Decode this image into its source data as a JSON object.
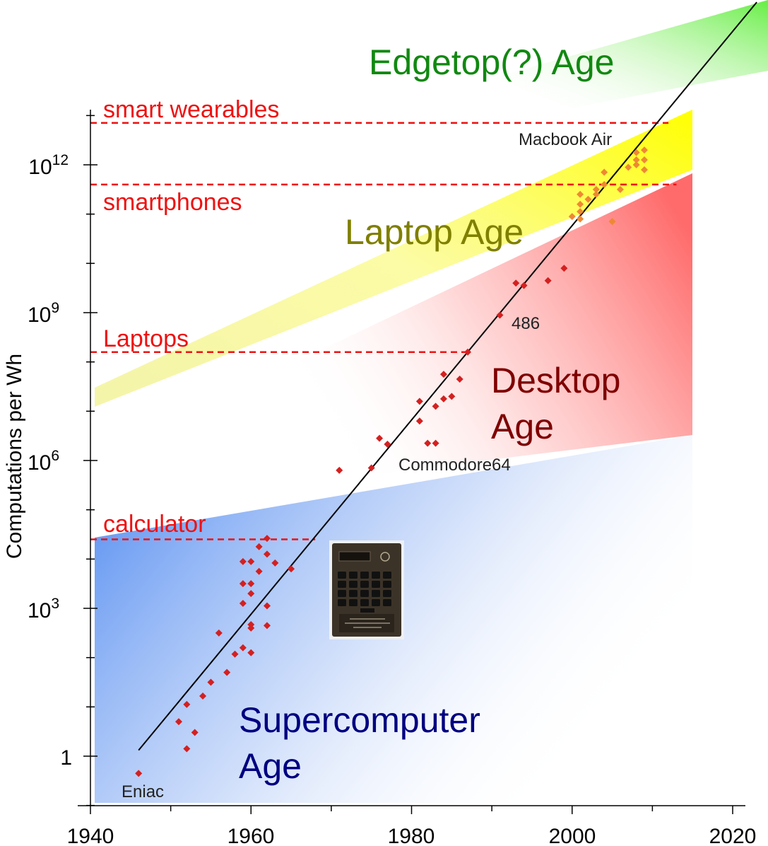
{
  "chart_data": {
    "type": "scatter",
    "title": "",
    "xlabel": "",
    "ylabel": "Computations per Wh",
    "x_log": false,
    "y_log": true,
    "xlim": [
      1940,
      2024
    ],
    "ylim_log10": [
      -1,
      14.4
    ],
    "x_ticks": [
      {
        "value": 1940,
        "label": "1940"
      },
      {
        "value": 1960,
        "label": "1960"
      },
      {
        "value": 1980,
        "label": "1980"
      },
      {
        "value": 2000,
        "label": "2000"
      },
      {
        "value": 2020,
        "label": "2020"
      }
    ],
    "y_ticks": [
      {
        "log10": 0,
        "label": "1"
      },
      {
        "log10": 3,
        "base": "10",
        "exp": "3"
      },
      {
        "log10": 6,
        "base": "10",
        "exp": "6"
      },
      {
        "log10": 9,
        "base": "10",
        "exp": "9"
      },
      {
        "log10": 12,
        "base": "10",
        "exp": "12"
      }
    ],
    "grid": false,
    "trend_line": {
      "x": [
        1946,
        2023
      ],
      "log10_y": [
        0.12,
        15.3
      ],
      "color": "#000000"
    },
    "thresholds": [
      {
        "label": "smart wearables",
        "log10_value": 12.85,
        "x_end": 2012,
        "label_pos": "above",
        "color": "#ee1111"
      },
      {
        "label": "smartphones",
        "log10_value": 11.6,
        "x_end": 2013,
        "label_pos": "below",
        "color": "#ee1111"
      },
      {
        "label": "Laptops",
        "log10_value": 8.2,
        "x_end": 1987,
        "label_pos": "above",
        "color": "#ee1111"
      },
      {
        "label": "calculator",
        "log10_value": 4.4,
        "x_end": 1968,
        "label_pos": "above",
        "color": "#ee1111"
      }
    ],
    "ages": [
      {
        "label": "Edgetop(?) Age",
        "color": "#118811"
      },
      {
        "label": "Laptop Age",
        "color": "#7f7f00"
      },
      {
        "label": "Desktop",
        "color": "#7f0000"
      },
      {
        "label": "Age",
        "color": "#7f0000"
      },
      {
        "label": "Supercomputer",
        "color": "#000080"
      },
      {
        "label": "Age",
        "color": "#000080"
      }
    ],
    "point_labels": [
      {
        "text": "Eniac"
      },
      {
        "text": "Commodore64"
      },
      {
        "text": "486"
      },
      {
        "text": "Macbook Air"
      }
    ],
    "series": [
      {
        "points": [
          [
            1946,
            -0.35
          ],
          [
            1951,
            0.7
          ],
          [
            1952,
            1.05
          ],
          [
            1952,
            0.15
          ],
          [
            1953,
            0.48
          ],
          [
            1954,
            1.22
          ],
          [
            1955,
            1.5
          ],
          [
            1956,
            2.5
          ],
          [
            1957,
            1.7
          ],
          [
            1958,
            2.07
          ],
          [
            1959,
            2.2
          ],
          [
            1959,
            3.1
          ],
          [
            1959,
            3.5
          ],
          [
            1959,
            3.95
          ],
          [
            1960,
            2.1
          ],
          [
            1960,
            2.6
          ],
          [
            1960,
            2.67
          ],
          [
            1960,
            3.3
          ],
          [
            1960,
            3.5
          ],
          [
            1960,
            3.95
          ],
          [
            1961,
            3.75
          ],
          [
            1961,
            4.25
          ],
          [
            1962,
            4.42
          ],
          [
            1962,
            4.1
          ],
          [
            1962,
            3.05
          ],
          [
            1962,
            2.65
          ],
          [
            1963,
            3.92
          ],
          [
            1965,
            3.8
          ],
          [
            1971,
            5.8
          ],
          [
            1975,
            5.85
          ],
          [
            1976,
            6.45
          ],
          [
            1977,
            6.33
          ],
          [
            1981,
            6.8
          ],
          [
            1981,
            7.2
          ],
          [
            1982,
            6.35
          ],
          [
            1983,
            6.35
          ],
          [
            1983,
            7.1
          ],
          [
            1984,
            7.25
          ],
          [
            1984,
            7.75
          ],
          [
            1985,
            7.3
          ],
          [
            1986,
            7.65
          ],
          [
            1987,
            8.2
          ],
          [
            1991,
            8.95
          ],
          [
            1993,
            9.6
          ],
          [
            1994,
            9.55
          ],
          [
            1997,
            9.65
          ],
          [
            1999,
            9.9
          ]
        ],
        "color": "#d42020"
      },
      {
        "points": [
          [
            2000,
            10.95
          ],
          [
            2001,
            10.9
          ],
          [
            2001,
            11.05
          ],
          [
            2001,
            11.2
          ],
          [
            2001,
            11.4
          ],
          [
            2002,
            11.3
          ],
          [
            2003,
            11.4
          ],
          [
            2003,
            11.5
          ],
          [
            2004,
            11.6
          ],
          [
            2004,
            11.85
          ],
          [
            2005,
            10.85
          ],
          [
            2006,
            11.5
          ],
          [
            2007,
            11.95
          ],
          [
            2008,
            12
          ],
          [
            2008,
            12.1
          ],
          [
            2008,
            12.25
          ],
          [
            2009,
            11.9
          ],
          [
            2009,
            12.1
          ],
          [
            2009,
            12.3
          ]
        ],
        "color": "#ee8833"
      }
    ]
  },
  "inset": {
    "name": "calculator photo",
    "plate_text": "THE FIRST CAL TECH  PRESENTED TO P.E. HAGGERTY  MARCH 29, 1967",
    "brand": "TI"
  }
}
